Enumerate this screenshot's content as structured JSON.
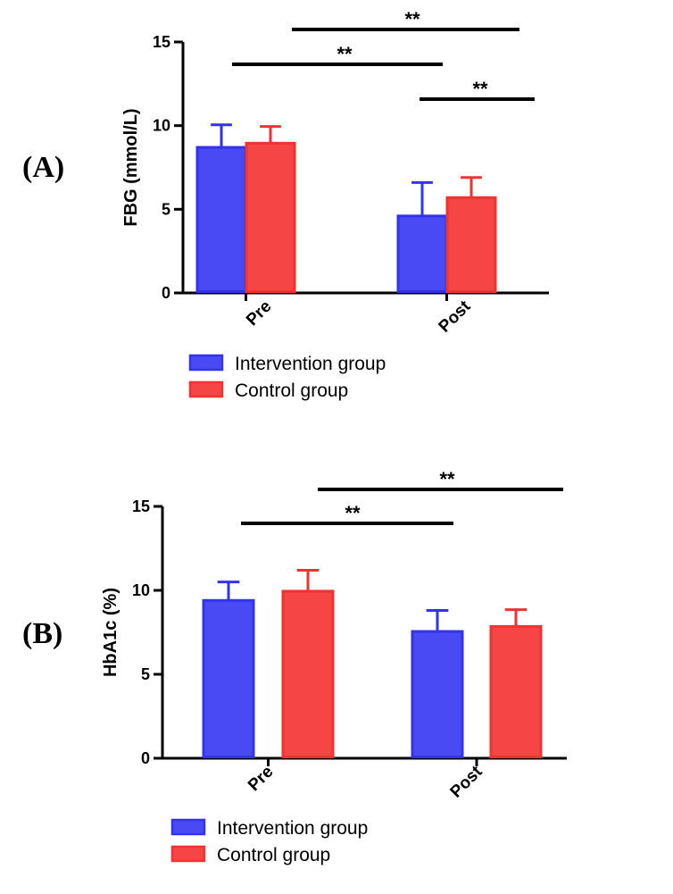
{
  "chart_data": [
    {
      "type": "bar",
      "panel_label": "(A)",
      "ylabel": "FBG (mmol/L)",
      "categories": [
        "Pre",
        "Post"
      ],
      "ylim": [
        0,
        15
      ],
      "yticks": [
        "0",
        "5",
        "10",
        "15"
      ],
      "grid": false,
      "legend_placement": "bottom",
      "series": [
        {
          "name": "Intervention group",
          "color": "#3333ee",
          "fill": "#4a4af5",
          "values": [
            8.7,
            4.6
          ],
          "errors": [
            1.35,
            2.0
          ]
        },
        {
          "name": "Control group",
          "color": "#ee3333",
          "fill": "#f54545",
          "values": [
            8.95,
            5.7
          ],
          "errors": [
            1.0,
            1.2
          ]
        }
      ],
      "significance": [
        {
          "label": "**",
          "from": "Pre · Intervention group",
          "to": "Post · Intervention group"
        },
        {
          "label": "**",
          "from": "Pre · Control group",
          "to": "Post · Control group"
        },
        {
          "label": "**",
          "from": "Post · Intervention group",
          "to": "Post · Control group"
        }
      ]
    },
    {
      "type": "bar",
      "panel_label": "(B)",
      "ylabel": "HbA1c (%)",
      "categories": [
        "Pre",
        "Post"
      ],
      "ylim": [
        0,
        15
      ],
      "yticks": [
        "0",
        "5",
        "10",
        "15"
      ],
      "grid": false,
      "legend_placement": "bottom",
      "series": [
        {
          "name": "Intervention group",
          "color": "#3333ee",
          "fill": "#4a4af5",
          "values": [
            9.4,
            7.55
          ],
          "errors": [
            1.1,
            1.25
          ]
        },
        {
          "name": "Control group",
          "color": "#ee3333",
          "fill": "#f54545",
          "values": [
            9.95,
            7.85
          ],
          "errors": [
            1.25,
            1.0
          ]
        }
      ],
      "significance": [
        {
          "label": "**",
          "from": "Pre · Intervention group",
          "to": "Post · Intervention group"
        },
        {
          "label": "**",
          "from": "Pre · Control group",
          "to": "Post · Control group"
        }
      ]
    }
  ]
}
